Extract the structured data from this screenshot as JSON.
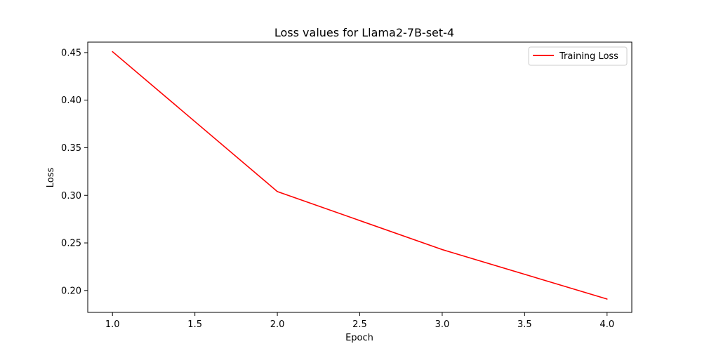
{
  "chart_data": {
    "type": "line",
    "title": "Loss values for Llama2-7B-set-4",
    "xlabel": "Epoch",
    "ylabel": "Loss",
    "xlim": [
      0.85,
      4.15
    ],
    "ylim": [
      0.177,
      0.461
    ],
    "xticks": [
      1.0,
      1.5,
      2.0,
      2.5,
      3.0,
      3.5,
      4.0
    ],
    "xtick_labels": [
      "1.0",
      "1.5",
      "2.0",
      "2.5",
      "3.0",
      "3.5",
      "4.0"
    ],
    "yticks": [
      0.2,
      0.25,
      0.3,
      0.35,
      0.4,
      0.45
    ],
    "ytick_labels": [
      "0.20",
      "0.25",
      "0.30",
      "0.35",
      "0.40",
      "0.45"
    ],
    "grid": false,
    "legend_position": "top-right",
    "series": [
      {
        "name": "Training Loss",
        "color": "#ff0000",
        "x": [
          1,
          2,
          3,
          4
        ],
        "y": [
          0.451,
          0.304,
          0.243,
          0.191
        ]
      }
    ]
  }
}
